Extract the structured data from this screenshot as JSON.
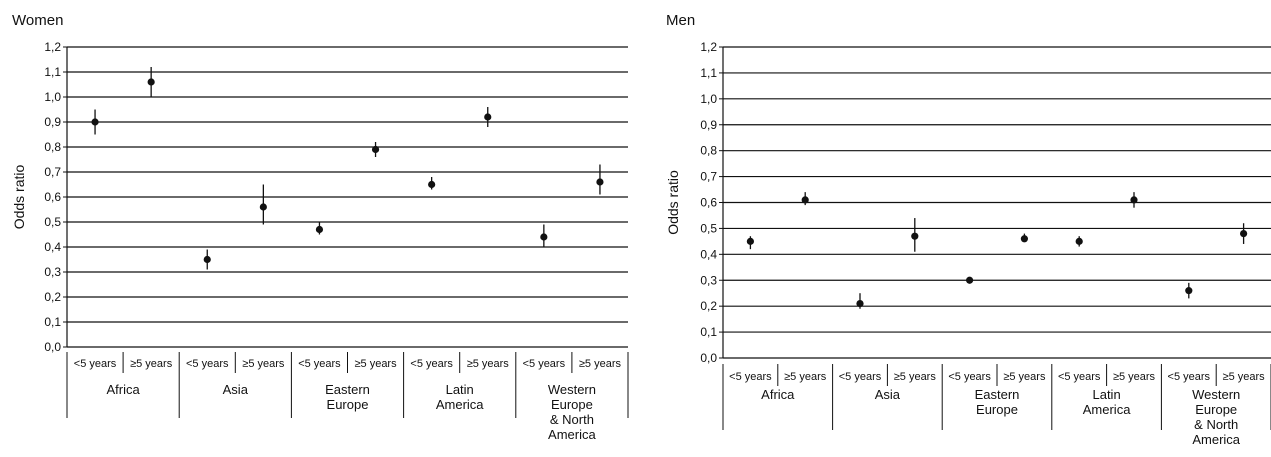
{
  "chart_data": [
    {
      "type": "scatter",
      "title": "Women",
      "ylabel": "Odds ratio",
      "ylim": [
        0.0,
        1.2
      ],
      "yticks": [
        "0,0",
        "0,1",
        "0,2",
        "0,3",
        "0,4",
        "0,5",
        "0,6",
        "0,7",
        "0,8",
        "0,9",
        "1,0",
        "1,1",
        "1,2"
      ],
      "grid": true,
      "subcategories": [
        "<5 years",
        "≥5 years"
      ],
      "groups": [
        {
          "name": "Africa",
          "label_lines": [
            "Africa"
          ]
        },
        {
          "name": "Asia",
          "label_lines": [
            "Asia"
          ]
        },
        {
          "name": "Eastern Europe",
          "label_lines": [
            "Eastern",
            "Europe"
          ]
        },
        {
          "name": "Latin America",
          "label_lines": [
            "Latin",
            "America"
          ]
        },
        {
          "name": "Western Europe & North America",
          "label_lines": [
            "Western",
            "Europe",
            "& North",
            "America"
          ]
        }
      ],
      "points": [
        {
          "group": "Africa",
          "sub": "<5 years",
          "value": 0.9,
          "lower": 0.85,
          "upper": 0.95
        },
        {
          "group": "Africa",
          "sub": "≥5 years",
          "value": 1.06,
          "lower": 1.0,
          "upper": 1.12
        },
        {
          "group": "Asia",
          "sub": "<5 years",
          "value": 0.35,
          "lower": 0.31,
          "upper": 0.39
        },
        {
          "group": "Asia",
          "sub": "≥5 years",
          "value": 0.56,
          "lower": 0.49,
          "upper": 0.65
        },
        {
          "group": "Eastern Europe",
          "sub": "<5 years",
          "value": 0.47,
          "lower": 0.45,
          "upper": 0.5
        },
        {
          "group": "Eastern Europe",
          "sub": "≥5 years",
          "value": 0.79,
          "lower": 0.76,
          "upper": 0.82
        },
        {
          "group": "Latin America",
          "sub": "<5 years",
          "value": 0.65,
          "lower": 0.63,
          "upper": 0.68
        },
        {
          "group": "Latin America",
          "sub": "≥5 years",
          "value": 0.92,
          "lower": 0.88,
          "upper": 0.96
        },
        {
          "group": "Western Europe & North America",
          "sub": "<5 years",
          "value": 0.44,
          "lower": 0.4,
          "upper": 0.49
        },
        {
          "group": "Western Europe & North America",
          "sub": "≥5 years",
          "value": 0.66,
          "lower": 0.61,
          "upper": 0.73
        }
      ]
    },
    {
      "type": "scatter",
      "title": "Men",
      "ylabel": "Odds ratio",
      "ylim": [
        0.0,
        1.2
      ],
      "yticks": [
        "0,0",
        "0,1",
        "0,2",
        "0,3",
        "0,4",
        "0,5",
        "0,6",
        "0,7",
        "0,8",
        "0,9",
        "1,0",
        "1,1",
        "1,2"
      ],
      "grid": true,
      "subcategories": [
        "<5 years",
        "≥5 years"
      ],
      "groups": [
        {
          "name": "Africa",
          "label_lines": [
            "Africa"
          ]
        },
        {
          "name": "Asia",
          "label_lines": [
            "Asia"
          ]
        },
        {
          "name": "Eastern Europe",
          "label_lines": [
            "Eastern",
            "Europe"
          ]
        },
        {
          "name": "Latin America",
          "label_lines": [
            "Latin",
            "America"
          ]
        },
        {
          "name": "Western Europe & North America",
          "label_lines": [
            "Western",
            "Europe",
            "& North",
            "America"
          ]
        }
      ],
      "points": [
        {
          "group": "Africa",
          "sub": "<5 years",
          "value": 0.45,
          "lower": 0.42,
          "upper": 0.47
        },
        {
          "group": "Africa",
          "sub": "≥5 years",
          "value": 0.61,
          "lower": 0.59,
          "upper": 0.64
        },
        {
          "group": "Asia",
          "sub": "<5 years",
          "value": 0.21,
          "lower": 0.19,
          "upper": 0.25
        },
        {
          "group": "Asia",
          "sub": "≥5 years",
          "value": 0.47,
          "lower": 0.41,
          "upper": 0.54
        },
        {
          "group": "Eastern Europe",
          "sub": "<5 years",
          "value": 0.3,
          "lower": 0.29,
          "upper": 0.31
        },
        {
          "group": "Eastern Europe",
          "sub": "≥5 years",
          "value": 0.46,
          "lower": 0.45,
          "upper": 0.48
        },
        {
          "group": "Latin America",
          "sub": "<5 years",
          "value": 0.45,
          "lower": 0.43,
          "upper": 0.47
        },
        {
          "group": "Latin America",
          "sub": "≥5 years",
          "value": 0.61,
          "lower": 0.58,
          "upper": 0.64
        },
        {
          "group": "Western Europe & North America",
          "sub": "<5 years",
          "value": 0.26,
          "lower": 0.23,
          "upper": 0.29
        },
        {
          "group": "Western Europe & North America",
          "sub": "≥5 years",
          "value": 0.48,
          "lower": 0.44,
          "upper": 0.52
        }
      ]
    }
  ]
}
